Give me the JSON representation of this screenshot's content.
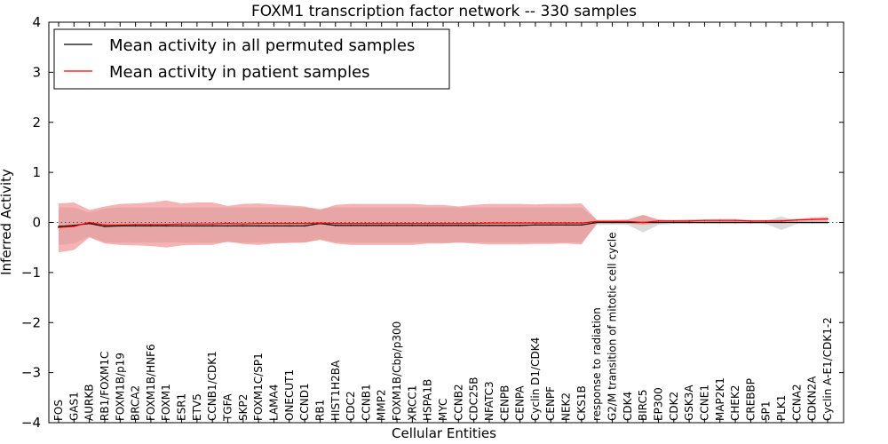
{
  "chart_data": {
    "type": "line",
    "title": "FOXM1 transcription factor network -- 330 samples",
    "xlabel": "Cellular Entities",
    "ylabel": "Inferred Activity",
    "ylim": [
      -4,
      4
    ],
    "yticks": [
      -4,
      -3,
      -2,
      -1,
      0,
      1,
      2,
      3,
      4
    ],
    "grid": false,
    "legend_position": "top-left",
    "categories": [
      "FOS",
      "GAS1",
      "AURKB",
      "RB1/FOXM1C",
      "FOXM1B/p19",
      "BRCA2",
      "FOXM1B/HNF6",
      "FOXM1",
      "ESR1",
      "ETV5",
      "CCNB1/CDK1",
      "TGFA",
      "SKP2",
      "FOXM1C/SP1",
      "LAMA4",
      "ONECUT1",
      "CCND1",
      "RB1",
      "HIST1H2BA",
      "CDC2",
      "CCNB1",
      "MMP2",
      "FOXM1B/Cbp/p300",
      "XRCC1",
      "HSPA1B",
      "MYC",
      "CCNB2",
      "CDC25B",
      "NFATC3",
      "CENPB",
      "CENPA",
      "Cyclin D1/CDK4",
      "CENPF",
      "NEK2",
      "CKS1B",
      "response to radiation",
      "G2/M transition of mitotic cell cycle",
      "CDK4",
      "BIRC5",
      "EP300",
      "CDK2",
      "GSK3A",
      "CCNE1",
      "MAP2K1",
      "CHEK2",
      "CREBBP",
      "SP1",
      "PLK1",
      "CCNA2",
      "CDKN2A",
      "Cyclin A-E1/CDK1-2"
    ],
    "series": [
      {
        "name": "Mean activity in all permuted samples",
        "color": "#000000",
        "band_color": "#b0b0b0",
        "values": [
          -0.08,
          -0.06,
          -0.02,
          -0.08,
          -0.07,
          -0.07,
          -0.07,
          -0.07,
          -0.07,
          -0.07,
          -0.07,
          -0.07,
          -0.07,
          -0.07,
          -0.07,
          -0.07,
          -0.07,
          -0.02,
          -0.06,
          -0.06,
          -0.06,
          -0.06,
          -0.06,
          -0.06,
          -0.06,
          -0.06,
          -0.06,
          -0.06,
          -0.06,
          -0.06,
          -0.06,
          -0.05,
          -0.05,
          -0.05,
          -0.05,
          0.0,
          0.0,
          0.0,
          0.0,
          0.0,
          0.0,
          0.0,
          0.0,
          0.0,
          0.0,
          0.0,
          0.0,
          0.0,
          0.0,
          0.0,
          0.0
        ],
        "upper": [
          0.3,
          0.3,
          0.2,
          0.28,
          0.3,
          0.3,
          0.3,
          0.3,
          0.3,
          0.3,
          0.3,
          0.3,
          0.3,
          0.3,
          0.3,
          0.3,
          0.3,
          0.28,
          0.3,
          0.3,
          0.3,
          0.3,
          0.3,
          0.3,
          0.3,
          0.3,
          0.3,
          0.3,
          0.3,
          0.3,
          0.3,
          0.3,
          0.3,
          0.3,
          0.3,
          0.05,
          0.05,
          0.05,
          0.15,
          0.05,
          0.03,
          0.03,
          0.03,
          0.03,
          0.03,
          0.03,
          0.03,
          0.12,
          0.03,
          0.03,
          0.03
        ],
        "lower": [
          -0.45,
          -0.42,
          -0.28,
          -0.4,
          -0.4,
          -0.4,
          -0.4,
          -0.4,
          -0.4,
          -0.4,
          -0.4,
          -0.4,
          -0.4,
          -0.4,
          -0.4,
          -0.4,
          -0.4,
          -0.33,
          -0.4,
          -0.4,
          -0.4,
          -0.4,
          -0.4,
          -0.4,
          -0.4,
          -0.4,
          -0.4,
          -0.4,
          -0.4,
          -0.4,
          -0.4,
          -0.4,
          -0.4,
          -0.4,
          -0.4,
          -0.05,
          -0.05,
          -0.05,
          -0.2,
          -0.05,
          -0.03,
          -0.03,
          -0.03,
          -0.03,
          -0.03,
          -0.03,
          -0.03,
          -0.15,
          -0.03,
          -0.03,
          -0.03
        ]
      },
      {
        "name": "Mean activity in patient samples",
        "color": "#ff0000",
        "band_color": "#f08080",
        "values": [
          -0.1,
          -0.08,
          0.0,
          -0.05,
          -0.05,
          -0.04,
          -0.04,
          -0.04,
          -0.03,
          -0.03,
          -0.03,
          -0.02,
          -0.03,
          -0.02,
          -0.02,
          -0.02,
          -0.02,
          -0.01,
          -0.02,
          -0.02,
          -0.02,
          -0.02,
          -0.02,
          -0.02,
          -0.02,
          -0.02,
          -0.02,
          -0.02,
          -0.01,
          -0.01,
          -0.01,
          -0.01,
          -0.01,
          -0.01,
          -0.01,
          0.02,
          0.02,
          0.02,
          0.0,
          0.03,
          0.03,
          0.03,
          0.04,
          0.04,
          0.04,
          0.03,
          0.03,
          0.03,
          0.05,
          0.06,
          0.07
        ],
        "upper": [
          0.38,
          0.4,
          0.25,
          0.32,
          0.37,
          0.38,
          0.4,
          0.44,
          0.38,
          0.4,
          0.4,
          0.33,
          0.37,
          0.38,
          0.36,
          0.34,
          0.32,
          0.25,
          0.35,
          0.37,
          0.37,
          0.37,
          0.37,
          0.37,
          0.35,
          0.35,
          0.32,
          0.35,
          0.37,
          0.37,
          0.37,
          0.36,
          0.37,
          0.37,
          0.38,
          0.05,
          0.05,
          0.06,
          0.15,
          0.06,
          0.05,
          0.06,
          0.06,
          0.07,
          0.07,
          0.05,
          0.05,
          0.06,
          0.07,
          0.1,
          0.11
        ],
        "lower": [
          -0.6,
          -0.55,
          -0.3,
          -0.42,
          -0.45,
          -0.46,
          -0.47,
          -0.5,
          -0.46,
          -0.45,
          -0.45,
          -0.38,
          -0.43,
          -0.45,
          -0.42,
          -0.41,
          -0.4,
          -0.35,
          -0.42,
          -0.45,
          -0.45,
          -0.45,
          -0.45,
          -0.45,
          -0.42,
          -0.42,
          -0.4,
          -0.42,
          -0.44,
          -0.44,
          -0.44,
          -0.43,
          -0.43,
          -0.42,
          -0.44,
          -0.02,
          -0.02,
          -0.02,
          -0.05,
          -0.02,
          0.0,
          0.0,
          0.01,
          0.01,
          0.01,
          0.01,
          0.01,
          0.0,
          0.02,
          0.03,
          0.03
        ]
      }
    ],
    "zero_line_style": "dotted"
  }
}
